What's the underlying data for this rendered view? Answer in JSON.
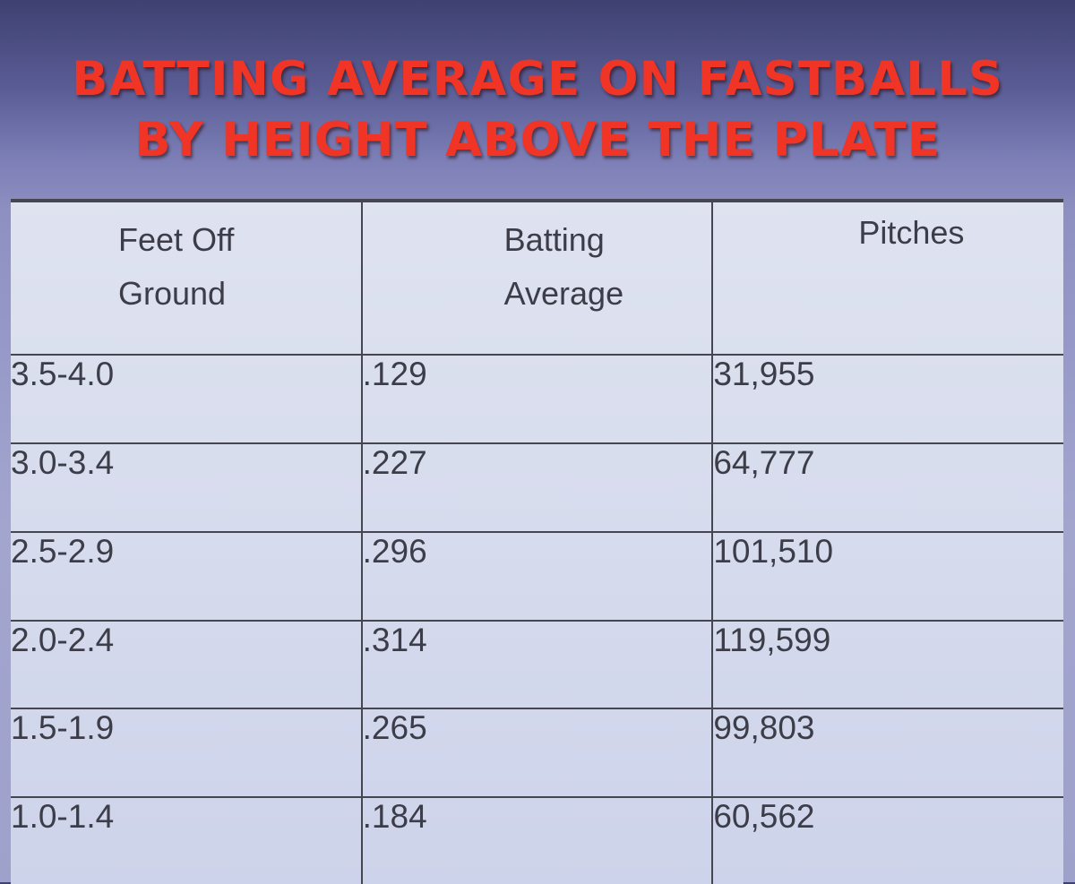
{
  "slide": {
    "title": "BATTING AVERAGE ON FASTBALLS\nBY HEIGHT ABOVE THE PLATE"
  },
  "colors": {
    "title_red": "#f03426",
    "background_purple": "#7c7eb6",
    "table_fill": "#d6dbed",
    "grid_line": "#45464f"
  },
  "chart_data": {
    "type": "table",
    "title": "BATTING AVERAGE ON FASTBALLS BY HEIGHT ABOVE THE PLATE",
    "columns": [
      "Feet Off\nGround",
      "Batting\nAverage",
      "Pitches"
    ],
    "rows": [
      [
        "3.5-4.0",
        ".129",
        "31,955"
      ],
      [
        "3.0-3.4",
        ".227",
        "64,777"
      ],
      [
        "2.5-2.9",
        ".296",
        "101,510"
      ],
      [
        "2.0-2.4",
        ".314",
        "119,599"
      ],
      [
        "1.5-1.9",
        ".265",
        "99,803"
      ],
      [
        "1.0-1.4",
        ".184",
        "60,562"
      ]
    ]
  }
}
